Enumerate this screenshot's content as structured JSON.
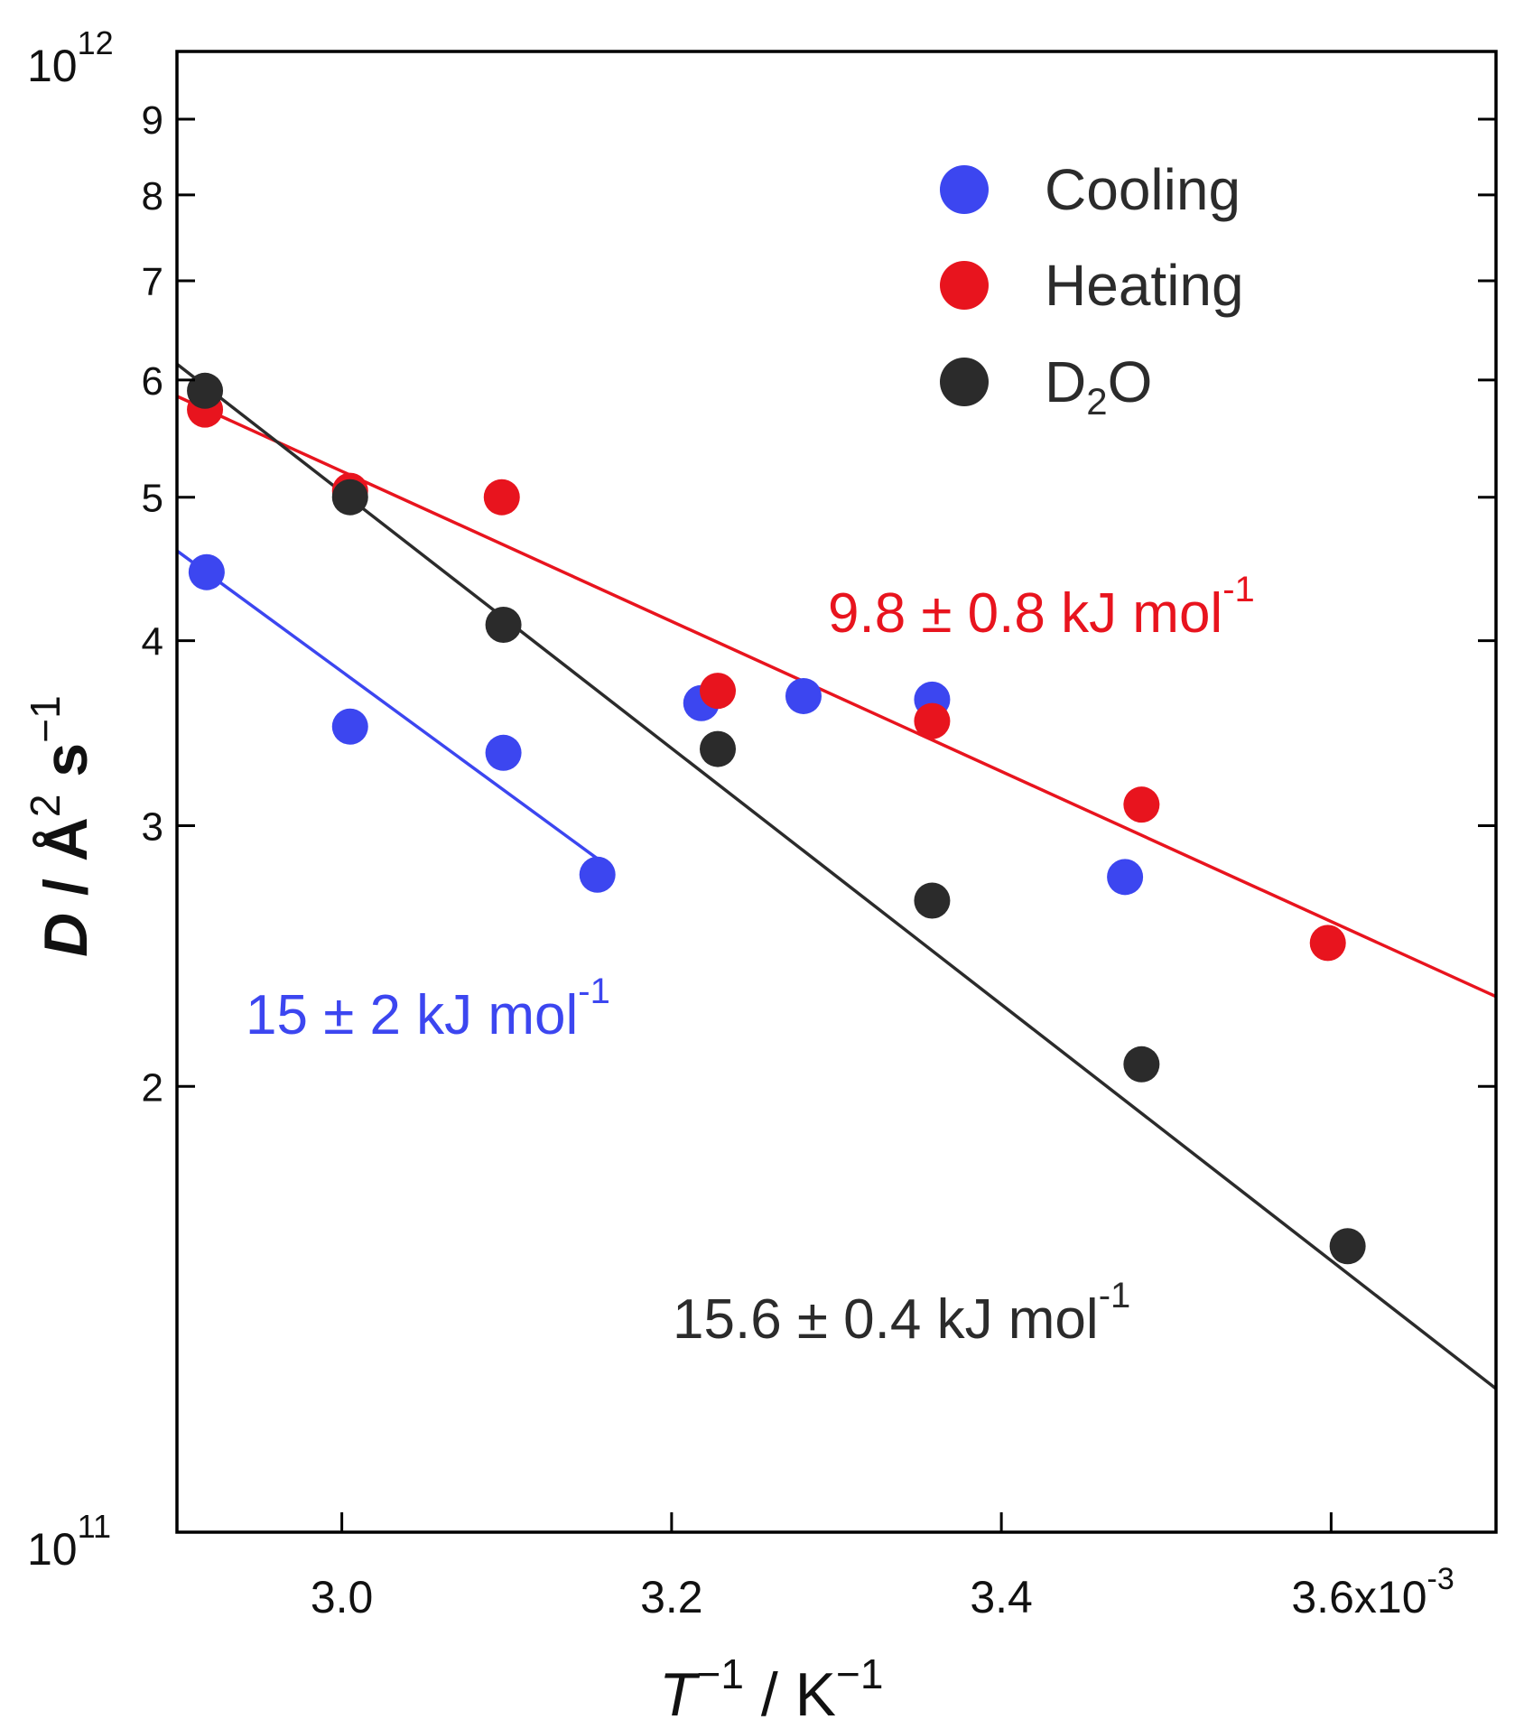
{
  "chart_data": {
    "type": "scatter",
    "title": "",
    "xlabel_main": "T",
    "xlabel_exp": "−1",
    "xlabel_unit": " / K",
    "xlabel_unit_exp": "−1",
    "ylabel_main": "D",
    "ylabel_unit": " / Å",
    "ylabel_unit_exp": "2",
    "ylabel_s": " s",
    "ylabel_s_exp": "−1",
    "xlim": [
      2.9,
      3.7
    ],
    "ylim": [
      100000000000.0,
      1000000000000.0
    ],
    "yscale": "log",
    "x_multiplier": "1e-3",
    "x_ticks": [
      {
        "value": 3.0,
        "label": "3.0"
      },
      {
        "value": 3.2,
        "label": "3.2"
      },
      {
        "value": 3.4,
        "label": "3.4"
      },
      {
        "value": 3.6,
        "label": "3.6x10",
        "exp": "-3"
      }
    ],
    "y_ticks": [
      {
        "value": 100000000000.0,
        "label": "10",
        "exp": "11"
      },
      {
        "value": 200000000000.0,
        "label": "2"
      },
      {
        "value": 300000000000.0,
        "label": "3"
      },
      {
        "value": 400000000000.0,
        "label": "4"
      },
      {
        "value": 500000000000.0,
        "label": "5"
      },
      {
        "value": 600000000000.0,
        "label": "6"
      },
      {
        "value": 700000000000.0,
        "label": "7"
      },
      {
        "value": 800000000000.0,
        "label": "8"
      },
      {
        "value": 900000000000.0,
        "label": "9"
      },
      {
        "value": 1000000000000.0,
        "label": "10",
        "exp": "12"
      }
    ],
    "legend_position": "top-right",
    "series": [
      {
        "name": "Cooling",
        "name_sub": "",
        "name_after": "",
        "color": "#3c46f0",
        "points": [
          {
            "x": 2.918,
            "y": 445000000000.0
          },
          {
            "x": 3.005,
            "y": 350000000000.0
          },
          {
            "x": 3.098,
            "y": 336000000000.0
          },
          {
            "x": 3.155,
            "y": 278000000000.0
          },
          {
            "x": 3.218,
            "y": 363000000000.0
          },
          {
            "x": 3.28,
            "y": 367000000000.0
          },
          {
            "x": 3.358,
            "y": 365000000000.0
          },
          {
            "x": 3.475,
            "y": 277000000000.0
          }
        ],
        "fit": {
          "x": [
            2.9,
            3.155
          ],
          "y": [
            460000000000.0,
            285000000000.0
          ]
        },
        "annotation": "15 ± 2 kJ mol",
        "annotation_exp": "-1"
      },
      {
        "name": "Heating",
        "name_sub": "",
        "name_after": "",
        "color": "#e8141e",
        "points": [
          {
            "x": 2.917,
            "y": 573000000000.0
          },
          {
            "x": 3.005,
            "y": 505000000000.0
          },
          {
            "x": 3.097,
            "y": 500000000000.0
          },
          {
            "x": 3.228,
            "y": 370000000000.0
          },
          {
            "x": 3.358,
            "y": 353000000000.0
          },
          {
            "x": 3.485,
            "y": 310000000000.0
          },
          {
            "x": 3.598,
            "y": 250000000000.0
          }
        ],
        "fit": {
          "x": [
            2.9,
            3.7
          ],
          "y": [
            585000000000.0,
            230000000000.0
          ]
        },
        "annotation": "9.8 ± 0.8 kJ mol",
        "annotation_exp": "-1"
      },
      {
        "name": "D",
        "name_sub": "2",
        "name_after": "O",
        "color": "#2b2b2b",
        "points": [
          {
            "x": 2.917,
            "y": 590000000000.0
          },
          {
            "x": 3.005,
            "y": 500000000000.0
          },
          {
            "x": 3.098,
            "y": 410000000000.0
          },
          {
            "x": 3.228,
            "y": 338000000000.0
          },
          {
            "x": 3.358,
            "y": 267000000000.0
          },
          {
            "x": 3.485,
            "y": 207000000000.0
          },
          {
            "x": 3.61,
            "y": 156000000000.0
          }
        ],
        "fit": {
          "x": [
            2.9,
            3.7
          ],
          "y": [
            615000000000.0,
            125000000000.0
          ]
        },
        "annotation": "15.6 ± 0.4 kJ mol",
        "annotation_exp": "-1"
      }
    ]
  }
}
